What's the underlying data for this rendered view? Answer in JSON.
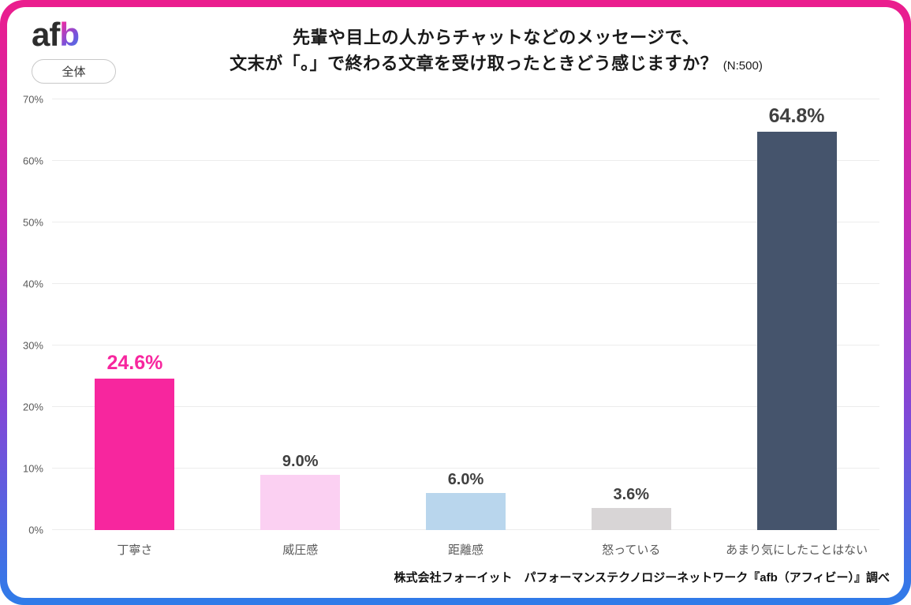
{
  "header": {
    "logo_af": "af",
    "logo_b": "b",
    "scope_label": "全体",
    "title_line1": "先輩や目上の人からチャットなどのメッセージで、",
    "title_line2": "文末が「。」で終わる文章を受け取ったときどう感じますか？",
    "sample_note": "(N:500)"
  },
  "chart_data": {
    "type": "bar",
    "title": "先輩や目上の人からチャットなどのメッセージで、文末が「。」で終わる文章を受け取ったときどう感じますか？ (N:500)",
    "categories": [
      "丁寧さ",
      "威圧感",
      "距離感",
      "怒っている",
      "あまり気にしたことはない"
    ],
    "values": [
      24.6,
      9.0,
      6.0,
      3.6,
      64.8
    ],
    "value_labels": [
      "24.6%",
      "9.0%",
      "6.0%",
      "3.6%",
      "64.8%"
    ],
    "bar_colors": [
      "#F7269E",
      "#FBD0F2",
      "#B9D6ED",
      "#D8D5D6",
      "#45546C"
    ],
    "value_label_colors": [
      "#F7269E",
      "#404040",
      "#404040",
      "#404040",
      "#404040"
    ],
    "emphasized": [
      true,
      false,
      false,
      false,
      true
    ],
    "xlabel": "",
    "ylabel": "",
    "ylim": [
      0,
      70
    ],
    "yticks": [
      "0%",
      "10%",
      "20%",
      "30%",
      "40%",
      "50%",
      "60%",
      "70%"
    ],
    "grid": true,
    "legend": false
  },
  "footer": {
    "source": "株式会社フォーイット　パフォーマンステクノロジーネットワーク『afb（アフィビー）』調べ"
  },
  "theme": {
    "frame_gradient_top": "#EB1D8D",
    "frame_gradient_mid": "#8148D7",
    "frame_gradient_bottom": "#2E7CE9",
    "accent_pink": "#F7269E",
    "grid_color": "#ececec",
    "tick_color": "#595959"
  }
}
